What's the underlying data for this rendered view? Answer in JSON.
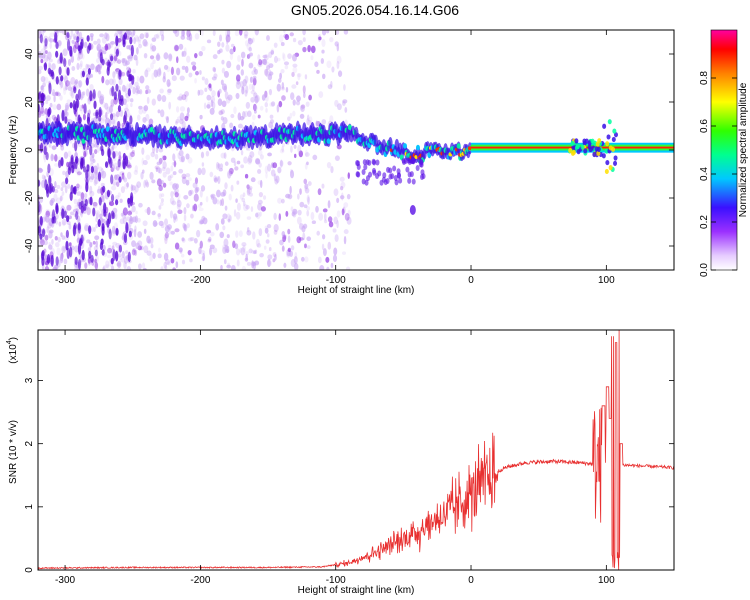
{
  "title": "GN05.2026.054.16.14.G06",
  "chart_data": [
    {
      "type": "heatmap",
      "xlabel": "Height of straight line (km)",
      "ylabel": "Frequency (Hz)",
      "xlim": [
        -320,
        150
      ],
      "ylim": [
        -50,
        50
      ],
      "xticks": [
        -300,
        -200,
        -100,
        0,
        100
      ],
      "yticks": [
        -40,
        -20,
        0,
        20,
        40
      ],
      "xtick_labels": [
        "-300",
        "-200",
        "-100",
        "0",
        "100"
      ],
      "ytick_labels": [
        "-40",
        "-20",
        "0",
        "20",
        "40"
      ],
      "colorbar": {
        "label": "Normalized spectral amplitude",
        "range": [
          0,
          1
        ],
        "ticks": [
          "0.0",
          "0.2",
          "0.4",
          "0.6",
          "0.8"
        ]
      },
      "ridge": [
        {
          "x": -320,
          "f": 7
        },
        {
          "x": -280,
          "f": 7
        },
        {
          "x": -240,
          "f": 6
        },
        {
          "x": -200,
          "f": 5
        },
        {
          "x": -160,
          "f": 5
        },
        {
          "x": -130,
          "f": 7
        },
        {
          "x": -110,
          "f": 6
        },
        {
          "x": -90,
          "f": 7
        },
        {
          "x": -75,
          "f": 3
        },
        {
          "x": -60,
          "f": 1
        },
        {
          "x": -40,
          "f": -2
        },
        {
          "x": -25,
          "f": 1
        },
        {
          "x": -10,
          "f": -1
        },
        {
          "x": 0,
          "f": 1
        },
        {
          "x": 75,
          "f": 1
        },
        {
          "x": 100,
          "f": 1
        },
        {
          "x": 150,
          "f": 1
        }
      ]
    },
    {
      "type": "line",
      "xlabel": "Height of straight line (km)",
      "ylabel": "SNR (10 * v/v)",
      "multiplier": "(x10",
      "multiplier_exp": "4",
      "multiplier_close": ")",
      "xlim": [
        -320,
        150
      ],
      "ylim": [
        0,
        3.8
      ],
      "xticks": [
        -300,
        -200,
        -100,
        0,
        100
      ],
      "yticks": [
        0,
        1,
        2,
        3
      ],
      "xtick_labels": [
        "-300",
        "-200",
        "-100",
        "0",
        "100"
      ],
      "ytick_labels": [
        "0",
        "1",
        "2",
        "3"
      ],
      "color": "#e83030",
      "envelope": [
        {
          "x": -320,
          "y": 0.03
        },
        {
          "x": -250,
          "y": 0.04
        },
        {
          "x": -150,
          "y": 0.04
        },
        {
          "x": -110,
          "y": 0.05
        },
        {
          "x": -90,
          "y": 0.12
        },
        {
          "x": -70,
          "y": 0.3
        },
        {
          "x": -50,
          "y": 0.5
        },
        {
          "x": -30,
          "y": 0.75
        },
        {
          "x": -10,
          "y": 1.05
        },
        {
          "x": 0,
          "y": 1.25
        },
        {
          "x": 10,
          "y": 1.45
        },
        {
          "x": 25,
          "y": 1.62
        },
        {
          "x": 40,
          "y": 1.7
        },
        {
          "x": 60,
          "y": 1.72
        },
        {
          "x": 80,
          "y": 1.7
        },
        {
          "x": 90,
          "y": 1.68
        },
        {
          "x": 115,
          "y": 1.66
        },
        {
          "x": 150,
          "y": 1.62
        }
      ],
      "spikes": [
        {
          "x": 98,
          "y": 2.6
        },
        {
          "x": 101,
          "y": 2.9
        },
        {
          "x": 103,
          "y": 2.4
        },
        {
          "x": 105,
          "y": 3.7
        },
        {
          "x": 107,
          "y": 3.6
        },
        {
          "x": 109,
          "y": 3.8
        },
        {
          "x": 111,
          "y": 2.0
        }
      ]
    }
  ]
}
